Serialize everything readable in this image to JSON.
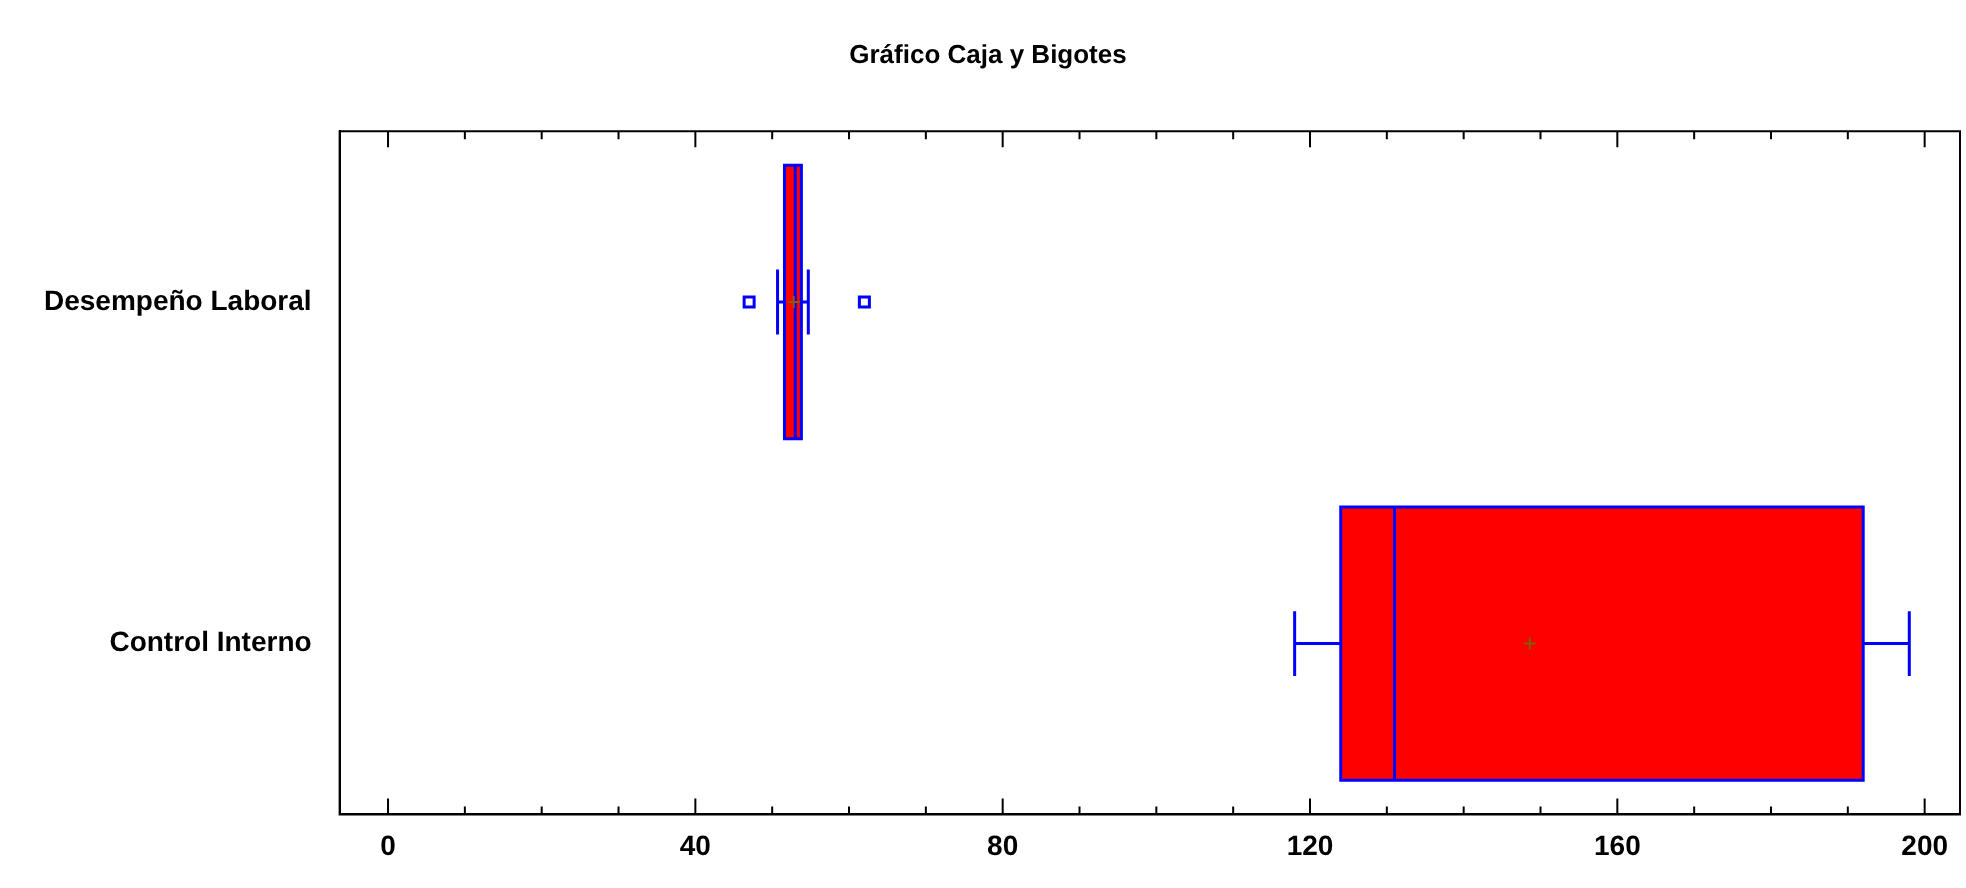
{
  "chart_data": {
    "type": "box",
    "title": "Gráfico Caja y Bigotes",
    "categories": [
      "Desempeño Laboral",
      "Control Interno"
    ],
    "orientation": "horizontal",
    "series": [
      {
        "color": "#ff0000",
        "boxes": [
          {
            "low": 50.7,
            "q1": 51.6,
            "median": 53,
            "q3": 53.8,
            "high": 54.7,
            "mean": 52.8,
            "outliers": [
              47,
              62
            ]
          },
          {
            "low": 118,
            "q1": 124,
            "median": 131,
            "q3": 192,
            "high": 198,
            "mean": 148.6
          }
        ]
      }
    ],
    "xlim": [
      -6.3,
      204.6
    ],
    "xticks": [
      0,
      {
        "value": 10,
        "label": null
      },
      {
        "value": 20,
        "label": null
      },
      {
        "value": 30,
        "label": null
      },
      40,
      {
        "value": 50,
        "label": null
      },
      {
        "value": 60,
        "label": null
      },
      {
        "value": 70,
        "label": null
      },
      80,
      {
        "value": 90,
        "label": null
      },
      {
        "value": 100,
        "label": null
      },
      {
        "value": 110,
        "label": null
      },
      120,
      {
        "value": 130,
        "label": null
      },
      {
        "value": 140,
        "label": null
      },
      {
        "value": 150,
        "label": null
      },
      160,
      {
        "value": 170,
        "label": null
      },
      {
        "value": 180,
        "label": null
      },
      {
        "value": 190,
        "label": null
      },
      200
    ],
    "grid": false,
    "legend": false
  }
}
